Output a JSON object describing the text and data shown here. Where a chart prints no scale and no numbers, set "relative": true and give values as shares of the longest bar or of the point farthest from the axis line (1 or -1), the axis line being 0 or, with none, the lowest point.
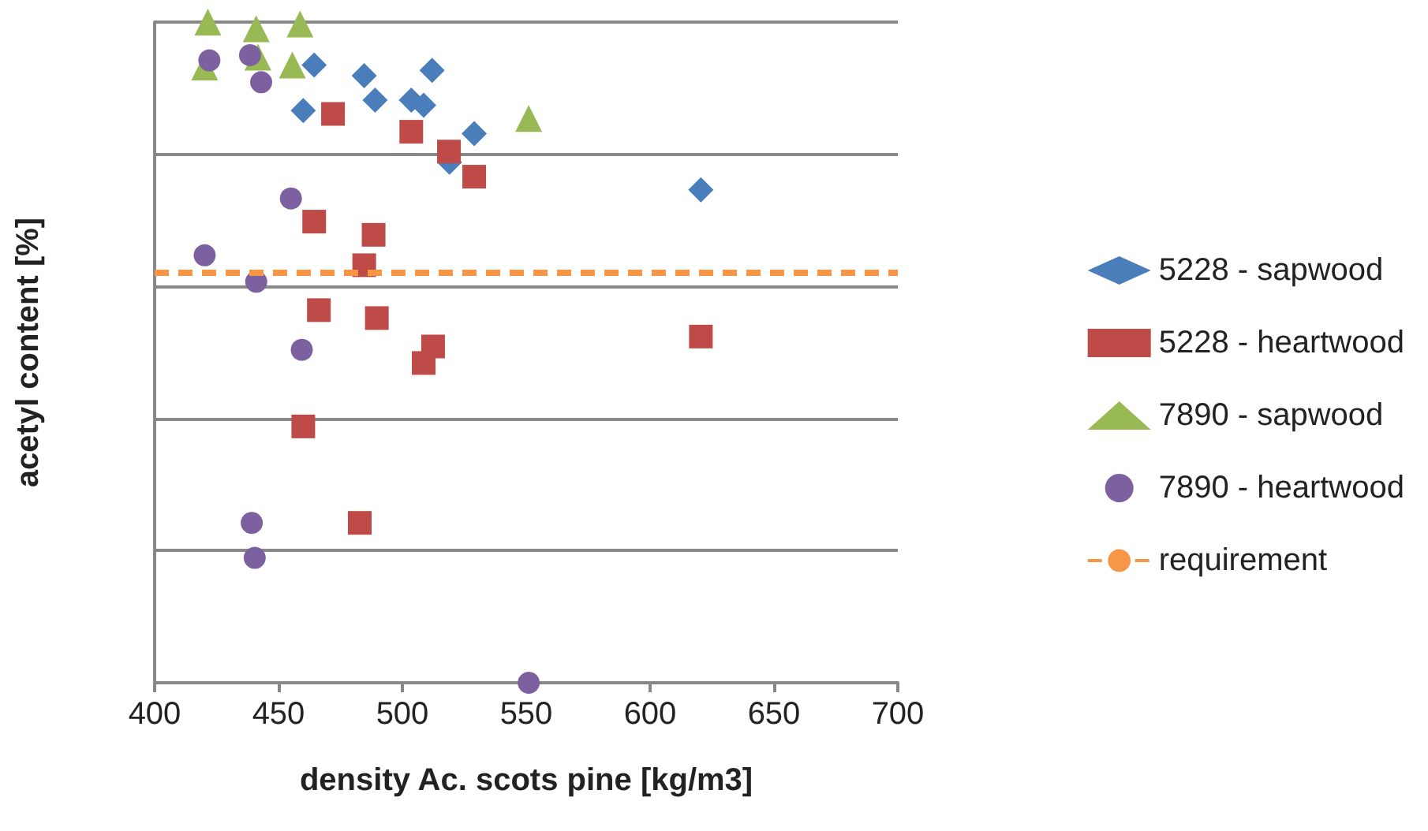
{
  "chart_data": {
    "type": "scatter",
    "relative": true,
    "xlabel": "density Ac. scots pine [kg/m3]",
    "ylabel": "acetyl content [%]",
    "xlim": [
      400,
      700
    ],
    "xticks": [
      400,
      450,
      500,
      550,
      600,
      650,
      700
    ],
    "grid": "y",
    "legend": "right",
    "series": [
      {
        "name": "5228 - sapwood",
        "color": "#4a7ebb",
        "marker": "diamond",
        "x": [
          464.4,
          460,
          484.6,
          489,
          503.6,
          508.6,
          512,
          519,
          529,
          620.5
        ],
        "values": [
          0.935,
          0.866,
          0.919,
          0.882,
          0.882,
          0.874,
          0.927,
          0.788,
          0.831,
          0.746
        ]
      },
      {
        "name": "5228 - heartwood",
        "color": "#be4b48",
        "marker": "square",
        "x": [
          472,
          503.6,
          518.8,
          529,
          464.4,
          488.4,
          484.6,
          466.3,
          489.7,
          512.4,
          508.6,
          620.5,
          460,
          482.8
        ],
        "values": [
          0.861,
          0.834,
          0.804,
          0.766,
          0.698,
          0.678,
          0.632,
          0.564,
          0.552,
          0.509,
          0.484,
          0.524,
          0.388,
          0.242
        ]
      },
      {
        "name": "7890 - sapwood",
        "color": "#98b954",
        "marker": "triangle",
        "x": [
          421.5,
          441,
          458.7,
          420.2,
          441.7,
          455.6,
          551
        ],
        "values": [
          1.0,
          0.99,
          0.997,
          0.932,
          0.947,
          0.935,
          0.854
        ]
      },
      {
        "name": "7890 - heartwood",
        "color": "#7d60a0",
        "marker": "circle",
        "x": [
          422.1,
          438.5,
          443,
          455,
          420.2,
          441,
          459.4,
          439.2,
          440.4,
          551
        ],
        "values": [
          0.942,
          0.95,
          0.909,
          0.733,
          0.647,
          0.607,
          0.504,
          0.242,
          0.189,
          0
        ]
      }
    ],
    "ref_lines": [
      {
        "axis": "y",
        "value": 0.617,
        "label": "requirement",
        "color": "#f79646",
        "line_style": "dashed"
      }
    ]
  }
}
